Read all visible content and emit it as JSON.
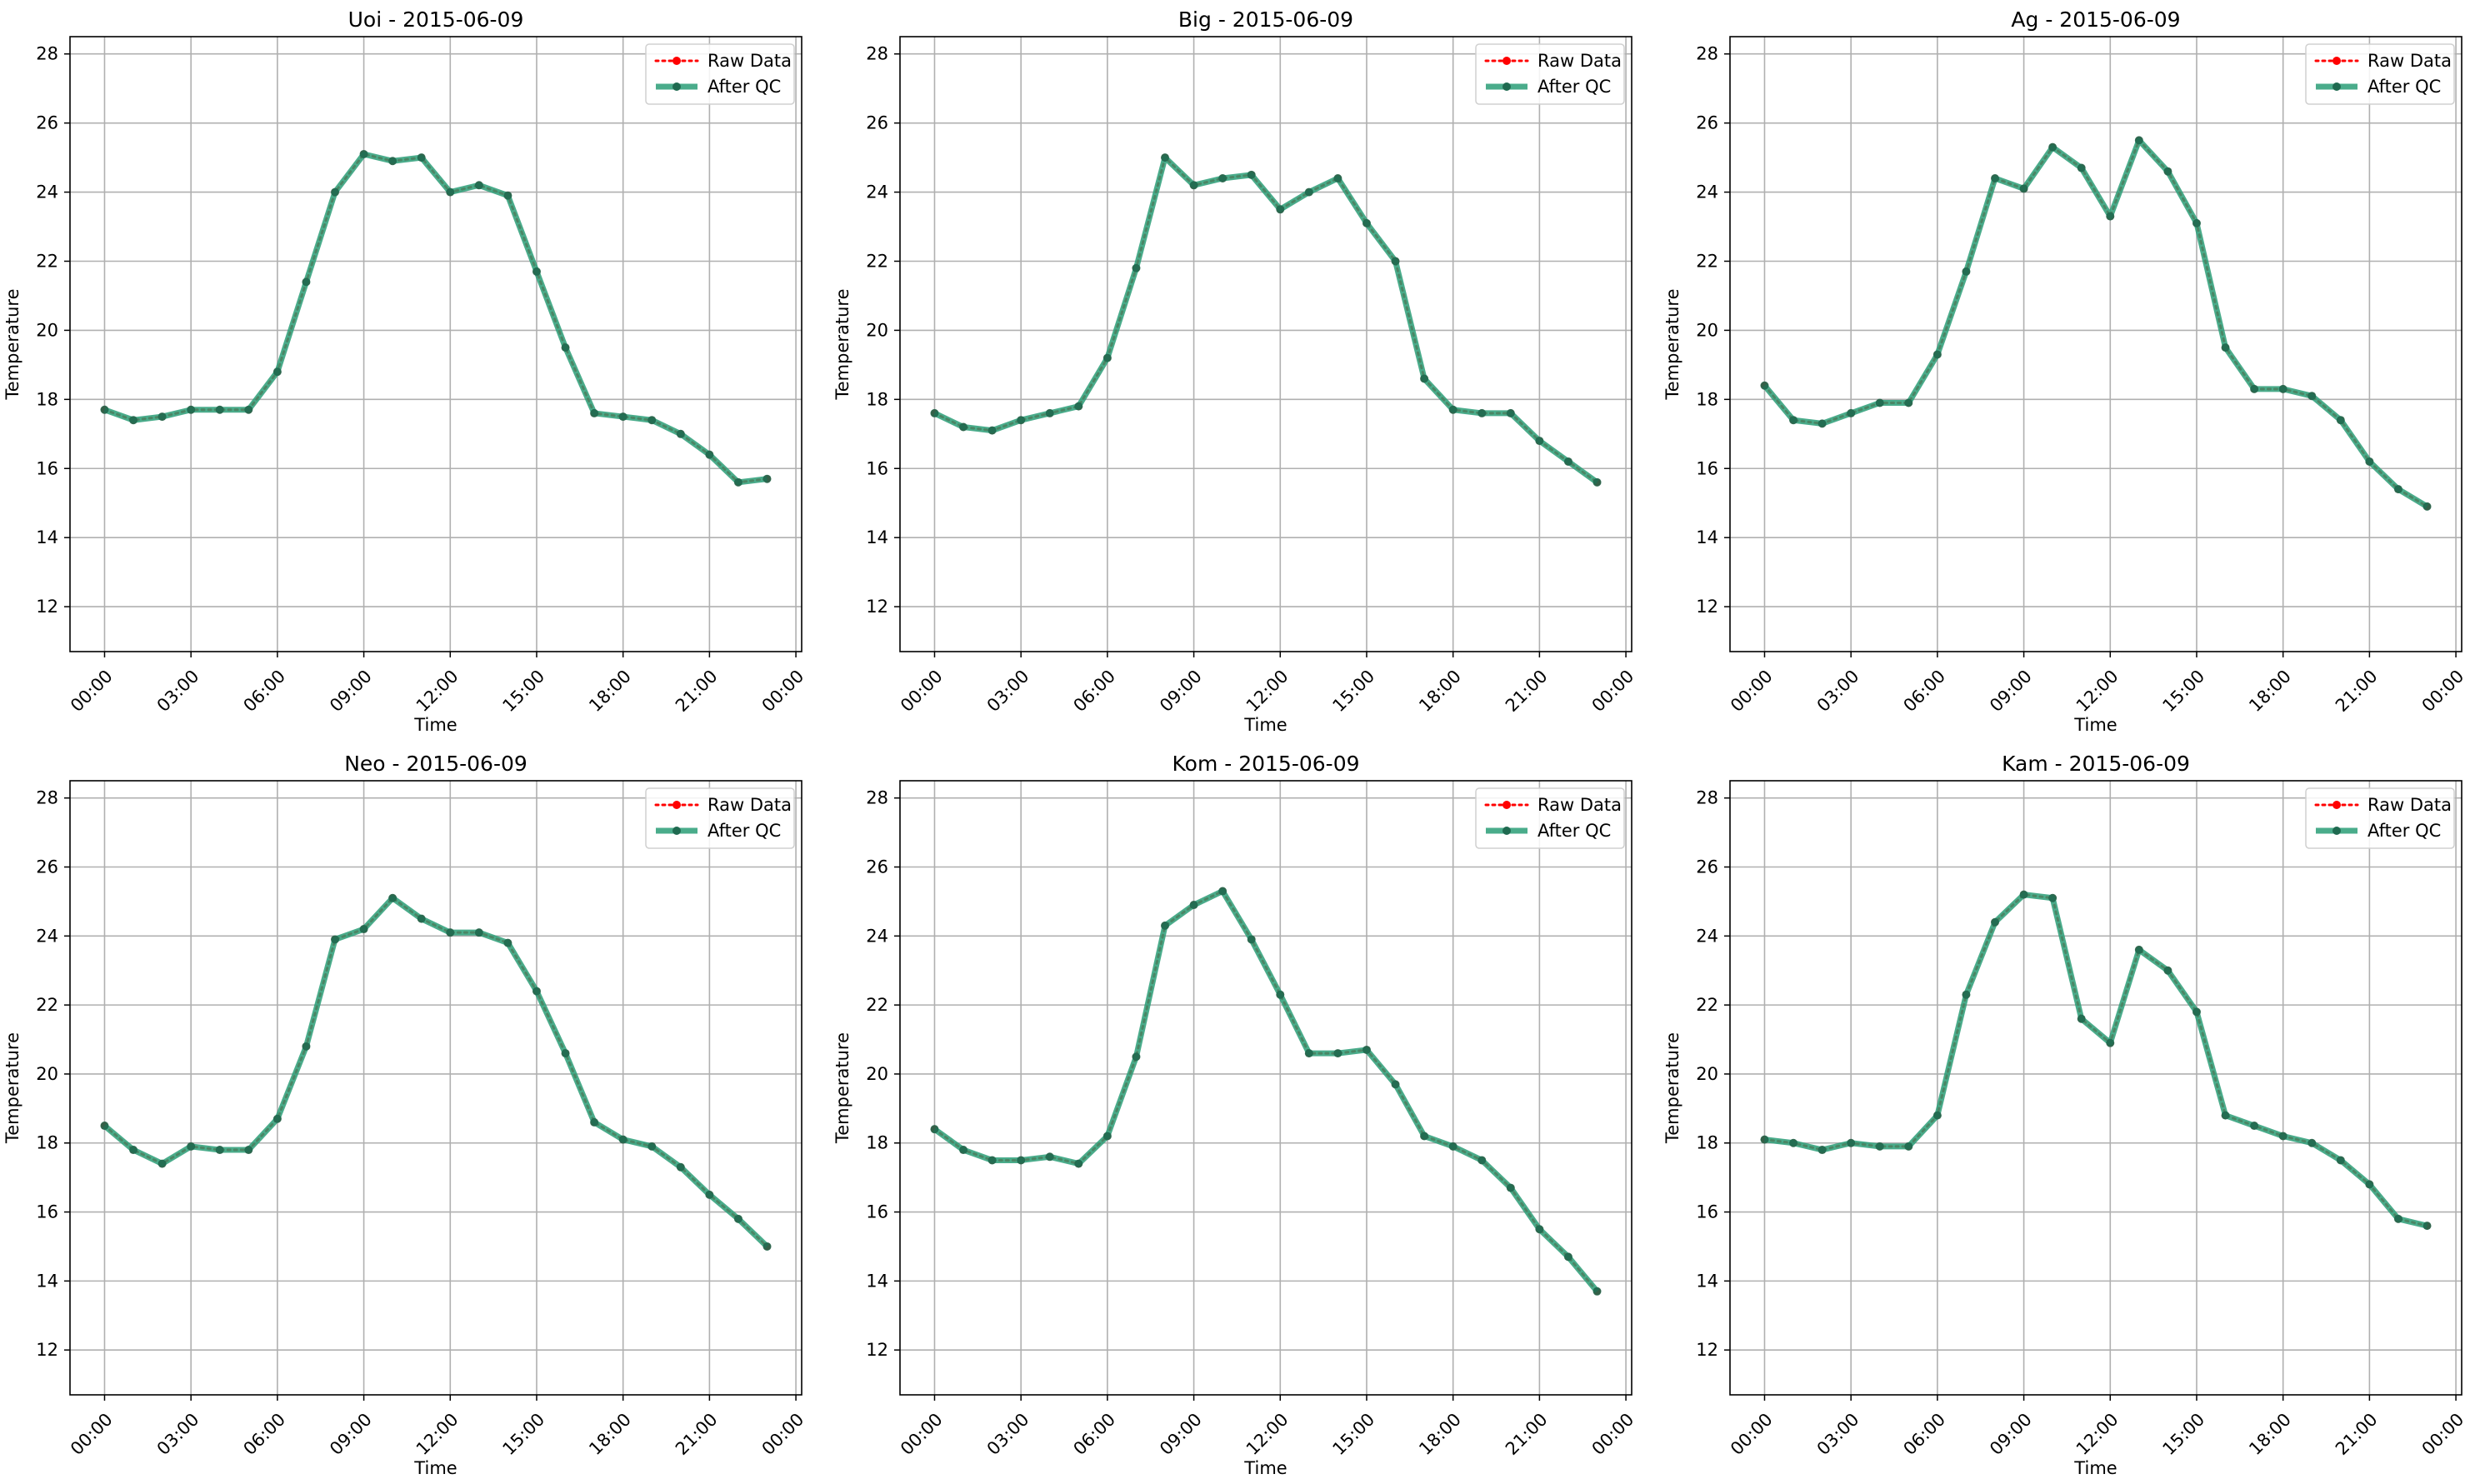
{
  "chart_data": [
    {
      "type": "line",
      "title": "Uoi - 2015-06-09",
      "xlabel": "Time",
      "ylabel": "Temperature",
      "x_ticks": [
        "00:00",
        "03:00",
        "06:00",
        "09:00",
        "12:00",
        "15:00",
        "18:00",
        "21:00",
        "00:00"
      ],
      "y_ticks": [
        "12",
        "14",
        "16",
        "18",
        "20",
        "22",
        "24",
        "26",
        "28"
      ],
      "xlim": [
        -1.2,
        24.2
      ],
      "ylim": [
        10.7,
        28.5
      ],
      "grid": true,
      "legend_position": "top-right",
      "x": [
        0,
        1,
        2,
        3,
        4,
        5,
        6,
        7,
        8,
        9,
        10,
        11,
        12,
        13,
        14,
        15,
        16,
        17,
        18,
        19,
        20,
        21,
        22,
        23
      ],
      "series": [
        {
          "name": "Raw Data",
          "color": "#ff0000",
          "values": [
            17.7,
            17.4,
            17.5,
            17.7,
            17.7,
            17.7,
            18.8,
            21.4,
            24.0,
            25.1,
            24.9,
            25.0,
            24.0,
            24.2,
            23.9,
            21.7,
            19.5,
            17.6,
            17.5,
            17.4,
            17.0,
            16.4,
            15.6,
            15.7
          ]
        },
        {
          "name": "After QC",
          "color": "#2a9d77",
          "values": [
            17.7,
            17.4,
            17.5,
            17.7,
            17.7,
            17.7,
            18.8,
            21.4,
            24.0,
            25.1,
            24.9,
            25.0,
            24.0,
            24.2,
            23.9,
            21.7,
            19.5,
            17.6,
            17.5,
            17.4,
            17.0,
            16.4,
            15.6,
            15.7
          ]
        }
      ]
    },
    {
      "type": "line",
      "title": "Big - 2015-06-09",
      "xlabel": "Time",
      "ylabel": "Temperature",
      "x_ticks": [
        "00:00",
        "03:00",
        "06:00",
        "09:00",
        "12:00",
        "15:00",
        "18:00",
        "21:00",
        "00:00"
      ],
      "y_ticks": [
        "12",
        "14",
        "16",
        "18",
        "20",
        "22",
        "24",
        "26",
        "28"
      ],
      "xlim": [
        -1.2,
        24.2
      ],
      "ylim": [
        10.7,
        28.5
      ],
      "grid": true,
      "legend_position": "top-right",
      "x": [
        0,
        1,
        2,
        3,
        4,
        5,
        6,
        7,
        8,
        9,
        10,
        11,
        12,
        13,
        14,
        15,
        16,
        17,
        18,
        19,
        20,
        21,
        22,
        23
      ],
      "series": [
        {
          "name": "Raw Data",
          "color": "#ff0000",
          "values": [
            17.6,
            17.2,
            17.1,
            17.4,
            17.6,
            17.8,
            19.2,
            21.8,
            25.0,
            24.2,
            24.4,
            24.5,
            23.5,
            24.0,
            24.4,
            23.1,
            22.0,
            18.6,
            17.7,
            17.6,
            17.6,
            16.8,
            16.2,
            15.6
          ]
        },
        {
          "name": "After QC",
          "color": "#2a9d77",
          "values": [
            17.6,
            17.2,
            17.1,
            17.4,
            17.6,
            17.8,
            19.2,
            21.8,
            25.0,
            24.2,
            24.4,
            24.5,
            23.5,
            24.0,
            24.4,
            23.1,
            22.0,
            18.6,
            17.7,
            17.6,
            17.6,
            16.8,
            16.2,
            15.6
          ]
        }
      ]
    },
    {
      "type": "line",
      "title": "Ag - 2015-06-09",
      "xlabel": "Time",
      "ylabel": "Temperature",
      "x_ticks": [
        "00:00",
        "03:00",
        "06:00",
        "09:00",
        "12:00",
        "15:00",
        "18:00",
        "21:00",
        "00:00"
      ],
      "y_ticks": [
        "12",
        "14",
        "16",
        "18",
        "20",
        "22",
        "24",
        "26",
        "28"
      ],
      "xlim": [
        -1.2,
        24.2
      ],
      "ylim": [
        10.7,
        28.5
      ],
      "grid": true,
      "legend_position": "top-right",
      "x": [
        0,
        1,
        2,
        3,
        4,
        5,
        6,
        7,
        8,
        9,
        10,
        11,
        12,
        13,
        14,
        15,
        16,
        17,
        18,
        19,
        20,
        21,
        22,
        23
      ],
      "series": [
        {
          "name": "Raw Data",
          "color": "#ff0000",
          "values": [
            18.4,
            17.4,
            17.3,
            17.6,
            17.9,
            17.9,
            19.3,
            21.7,
            24.4,
            24.1,
            25.3,
            24.7,
            23.3,
            25.5,
            24.6,
            23.1,
            19.5,
            18.3,
            18.3,
            18.1,
            17.4,
            16.2,
            15.4,
            14.9
          ]
        },
        {
          "name": "After QC",
          "color": "#2a9d77",
          "values": [
            18.4,
            17.4,
            17.3,
            17.6,
            17.9,
            17.9,
            19.3,
            21.7,
            24.4,
            24.1,
            25.3,
            24.7,
            23.3,
            25.5,
            24.6,
            23.1,
            19.5,
            18.3,
            18.3,
            18.1,
            17.4,
            16.2,
            15.4,
            14.9
          ]
        }
      ]
    },
    {
      "type": "line",
      "title": "Neo - 2015-06-09",
      "xlabel": "Time",
      "ylabel": "Temperature",
      "x_ticks": [
        "00:00",
        "03:00",
        "06:00",
        "09:00",
        "12:00",
        "15:00",
        "18:00",
        "21:00",
        "00:00"
      ],
      "y_ticks": [
        "12",
        "14",
        "16",
        "18",
        "20",
        "22",
        "24",
        "26",
        "28"
      ],
      "xlim": [
        -1.2,
        24.2
      ],
      "ylim": [
        10.7,
        28.5
      ],
      "grid": true,
      "legend_position": "top-right",
      "x": [
        0,
        1,
        2,
        3,
        4,
        5,
        6,
        7,
        8,
        9,
        10,
        11,
        12,
        13,
        14,
        15,
        16,
        17,
        18,
        19,
        20,
        21,
        22,
        23
      ],
      "series": [
        {
          "name": "Raw Data",
          "color": "#ff0000",
          "values": [
            18.5,
            17.8,
            17.4,
            17.9,
            17.8,
            17.8,
            18.7,
            20.8,
            23.9,
            24.2,
            25.1,
            24.5,
            24.1,
            24.1,
            23.8,
            22.4,
            20.6,
            18.6,
            18.1,
            17.9,
            17.3,
            16.5,
            15.8,
            15.0
          ]
        },
        {
          "name": "After QC",
          "color": "#2a9d77",
          "values": [
            18.5,
            17.8,
            17.4,
            17.9,
            17.8,
            17.8,
            18.7,
            20.8,
            23.9,
            24.2,
            25.1,
            24.5,
            24.1,
            24.1,
            23.8,
            22.4,
            20.6,
            18.6,
            18.1,
            17.9,
            17.3,
            16.5,
            15.8,
            15.0
          ]
        }
      ]
    },
    {
      "type": "line",
      "title": "Kom - 2015-06-09",
      "xlabel": "Time",
      "ylabel": "Temperature",
      "x_ticks": [
        "00:00",
        "03:00",
        "06:00",
        "09:00",
        "12:00",
        "15:00",
        "18:00",
        "21:00",
        "00:00"
      ],
      "y_ticks": [
        "12",
        "14",
        "16",
        "18",
        "20",
        "22",
        "24",
        "26",
        "28"
      ],
      "xlim": [
        -1.2,
        24.2
      ],
      "ylim": [
        10.7,
        28.5
      ],
      "grid": true,
      "legend_position": "top-right",
      "x": [
        0,
        1,
        2,
        3,
        4,
        5,
        6,
        7,
        8,
        9,
        10,
        11,
        12,
        13,
        14,
        15,
        16,
        17,
        18,
        19,
        20,
        21,
        22,
        23
      ],
      "series": [
        {
          "name": "Raw Data",
          "color": "#ff0000",
          "values": [
            18.4,
            17.8,
            17.5,
            17.5,
            17.6,
            17.4,
            18.2,
            20.5,
            24.3,
            24.9,
            25.3,
            23.9,
            22.3,
            20.6,
            20.6,
            20.7,
            19.7,
            18.2,
            17.9,
            17.5,
            16.7,
            15.5,
            14.7,
            13.7
          ]
        },
        {
          "name": "After QC",
          "color": "#2a9d77",
          "values": [
            18.4,
            17.8,
            17.5,
            17.5,
            17.6,
            17.4,
            18.2,
            20.5,
            24.3,
            24.9,
            25.3,
            23.9,
            22.3,
            20.6,
            20.6,
            20.7,
            19.7,
            18.2,
            17.9,
            17.5,
            16.7,
            15.5,
            14.7,
            13.7
          ]
        }
      ]
    },
    {
      "type": "line",
      "title": "Kam - 2015-06-09",
      "xlabel": "Time",
      "ylabel": "Temperature",
      "x_ticks": [
        "00:00",
        "03:00",
        "06:00",
        "09:00",
        "12:00",
        "15:00",
        "18:00",
        "21:00",
        "00:00"
      ],
      "y_ticks": [
        "12",
        "14",
        "16",
        "18",
        "20",
        "22",
        "24",
        "26",
        "28"
      ],
      "xlim": [
        -1.2,
        24.2
      ],
      "ylim": [
        10.7,
        28.5
      ],
      "grid": true,
      "legend_position": "top-right",
      "x": [
        0,
        1,
        2,
        3,
        4,
        5,
        6,
        7,
        8,
        9,
        10,
        11,
        12,
        13,
        14,
        15,
        16,
        17,
        18,
        19,
        20,
        21,
        22,
        23
      ],
      "series": [
        {
          "name": "Raw Data",
          "color": "#ff0000",
          "values": [
            18.1,
            18.0,
            17.8,
            18.0,
            17.9,
            17.9,
            18.8,
            22.3,
            24.4,
            25.2,
            25.1,
            21.6,
            20.9,
            23.6,
            23.0,
            21.8,
            18.8,
            18.5,
            18.2,
            18.0,
            17.5,
            16.8,
            15.8,
            15.6
          ]
        },
        {
          "name": "After QC",
          "color": "#2a9d77",
          "values": [
            18.1,
            18.0,
            17.8,
            18.0,
            17.9,
            17.9,
            18.8,
            22.3,
            24.4,
            25.2,
            25.1,
            21.6,
            20.9,
            23.6,
            23.0,
            21.8,
            18.8,
            18.5,
            18.2,
            18.0,
            17.5,
            16.8,
            15.8,
            15.6
          ]
        }
      ]
    }
  ]
}
